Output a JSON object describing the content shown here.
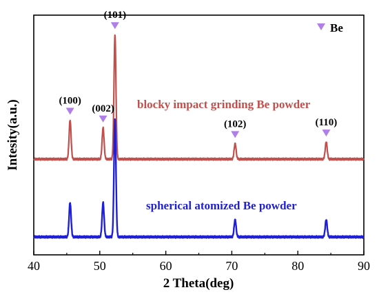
{
  "chart_data": {
    "type": "line",
    "title": "",
    "xlabel": "2 Theta(deg)",
    "ylabel": "Intesity(a.u.)",
    "xlim": [
      40,
      90
    ],
    "xticks": [
      40,
      50,
      60,
      70,
      80,
      90
    ],
    "grid": false,
    "legend": {
      "placement": "top-right",
      "label": "Be",
      "marker": "triangle-down",
      "color": "#b07ee8"
    },
    "peaks": [
      {
        "label": "(100)",
        "x": 45.5
      },
      {
        "label": "(002)",
        "x": 50.5
      },
      {
        "label": "(101)",
        "x": 52.3
      },
      {
        "label": "(102)",
        "x": 70.5
      },
      {
        "label": "(110)",
        "x": 84.3
      }
    ],
    "series": [
      {
        "name": "blocky impact grinding Be powder",
        "color": "#c0504d",
        "baseline": 0.5,
        "peaks": [
          {
            "x": 45.5,
            "height": 0.25
          },
          {
            "x": 50.5,
            "height": 0.2
          },
          {
            "x": 52.3,
            "height": 0.8
          },
          {
            "x": 70.5,
            "height": 0.1
          },
          {
            "x": 84.3,
            "height": 0.11
          }
        ]
      },
      {
        "name": "spherical atomized Be powder",
        "color": "#1f1fd6",
        "baseline": 0,
        "peaks": [
          {
            "x": 45.5,
            "height": 0.22
          },
          {
            "x": 50.5,
            "height": 0.22
          },
          {
            "x": 52.3,
            "height": 0.76
          },
          {
            "x": 70.5,
            "height": 0.11
          },
          {
            "x": 84.3,
            "height": 0.11
          }
        ]
      }
    ]
  }
}
